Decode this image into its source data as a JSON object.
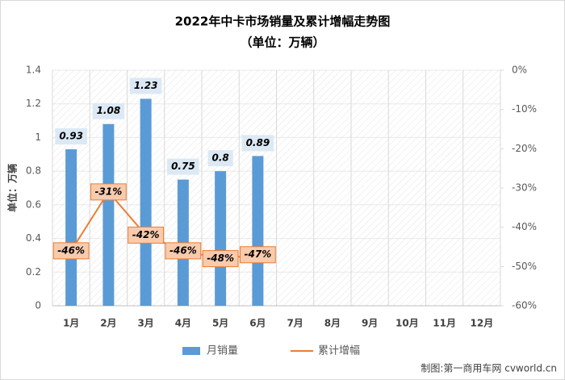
{
  "chart_data": {
    "type": "bar_line",
    "title": "2022年中卡市场销量及累计增幅走势图",
    "subtitle": "（单位：万辆）",
    "y_label": "单位：万辆",
    "source": "制图:第一商用车网 cvworld.cn",
    "categories": [
      "1月",
      "2月",
      "3月",
      "4月",
      "5月",
      "6月",
      "7月",
      "8月",
      "9月",
      "10月",
      "11月",
      "12月"
    ],
    "series": [
      {
        "name": "月销量",
        "color": "#5b9bd5",
        "values": [
          0.93,
          1.08,
          1.23,
          0.75,
          0.8,
          0.89,
          null,
          null,
          null,
          null,
          null,
          null
        ]
      },
      {
        "name": "累计增幅",
        "color": "#ed7d31",
        "axis": "y2",
        "values": [
          -46,
          -31,
          -42,
          -46,
          -48,
          -47,
          null,
          null,
          null,
          null,
          null,
          null
        ],
        "value_labels": [
          "-46%",
          "-31%",
          "-42%",
          "-46%",
          "-48%",
          "-47%",
          null,
          null,
          null,
          null,
          null,
          null
        ]
      }
    ],
    "ylim": [
      0,
      1.4
    ],
    "yticks": [
      0,
      0.2,
      0.4,
      0.6,
      0.8,
      1,
      1.2,
      1.4
    ],
    "y2lim": [
      -60,
      0
    ],
    "y2ticks": [
      {
        "value": 0,
        "label": "0%"
      },
      {
        "value": -10,
        "label": "-10%"
      },
      {
        "value": -20,
        "label": "-20%"
      },
      {
        "value": -30,
        "label": "-30%"
      },
      {
        "value": -40,
        "label": "-40%"
      },
      {
        "value": -50,
        "label": "-50%"
      },
      {
        "value": -60,
        "label": "-60%"
      }
    ],
    "grid": true
  }
}
